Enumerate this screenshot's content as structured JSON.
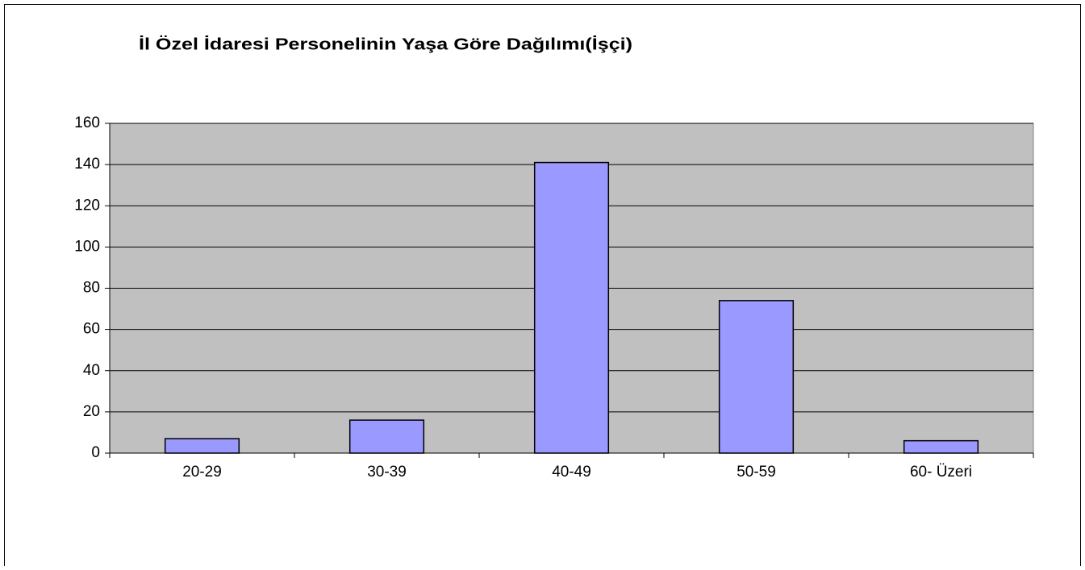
{
  "chart_data": {
    "type": "bar",
    "title": "İl Özel İdaresi Personelinin Yaşa Göre Dağılımı(İşçi)",
    "categories": [
      "20-29",
      "30-39",
      "40-49",
      "50-59",
      "60- Üzeri"
    ],
    "values": [
      7,
      16,
      141,
      74,
      6
    ],
    "color": "#9999ff",
    "ylim": [
      0,
      160
    ],
    "yticks": [
      0,
      20,
      40,
      60,
      80,
      100,
      120,
      140,
      160
    ],
    "grid": true
  }
}
